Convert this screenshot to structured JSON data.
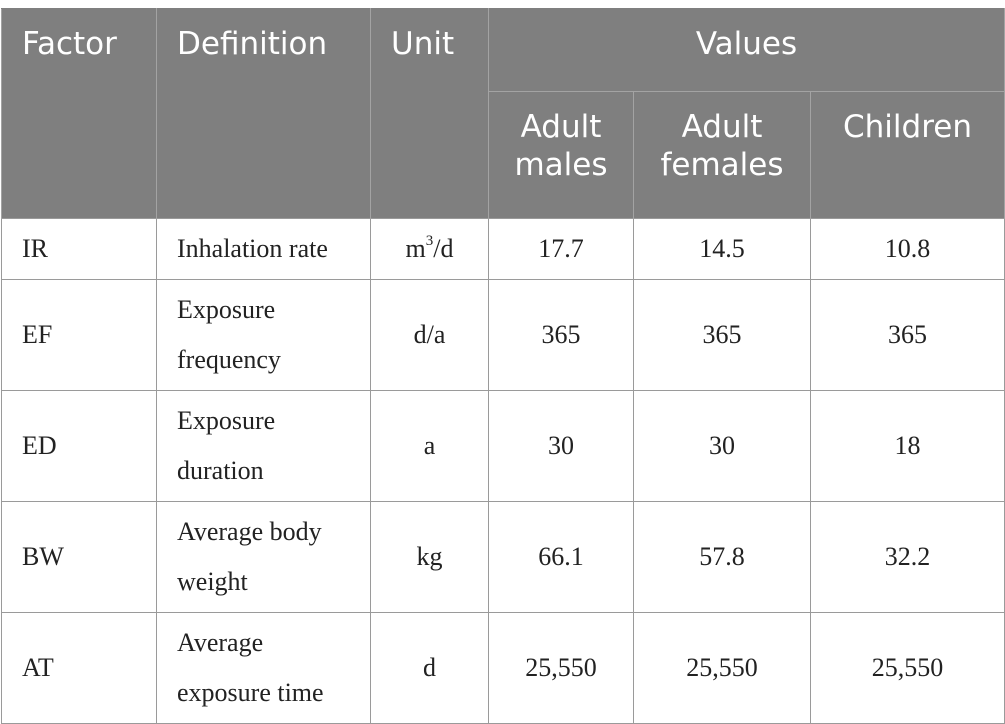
{
  "table": {
    "headers": {
      "factor": "Factor",
      "definition": "Definition",
      "unit": "Unit",
      "values": "Values",
      "sub": [
        "Adult males",
        "Adult females",
        "Children"
      ],
      "sub_lines": [
        [
          "Adult",
          "males"
        ],
        [
          "Adult",
          "females"
        ],
        [
          "Children"
        ]
      ]
    },
    "rows": [
      {
        "factor": "IR",
        "definition_lines": [
          "Inhalation rate"
        ],
        "unit_base": "m",
        "unit_sup": "3",
        "unit_rest": "/d",
        "values": [
          "17.7",
          "14.5",
          "10.8"
        ]
      },
      {
        "factor": "EF",
        "definition_lines": [
          "Exposure",
          "frequency"
        ],
        "unit_base": "d/a",
        "unit_sup": "",
        "unit_rest": "",
        "values": [
          "365",
          "365",
          "365"
        ]
      },
      {
        "factor": "ED",
        "definition_lines": [
          "Exposure",
          "duration"
        ],
        "unit_base": "a",
        "unit_sup": "",
        "unit_rest": "",
        "values": [
          "30",
          "30",
          "18"
        ]
      },
      {
        "factor": "BW",
        "definition_lines": [
          "Average body",
          "weight"
        ],
        "unit_base": "kg",
        "unit_sup": "",
        "unit_rest": "",
        "values": [
          "66.1",
          "57.8",
          "32.2"
        ]
      },
      {
        "factor": "AT",
        "definition_lines": [
          "Average",
          "exposure time"
        ],
        "unit_base": "d",
        "unit_sup": "",
        "unit_rest": "",
        "values": [
          "25,550",
          "25,550",
          "25,550"
        ]
      }
    ]
  }
}
